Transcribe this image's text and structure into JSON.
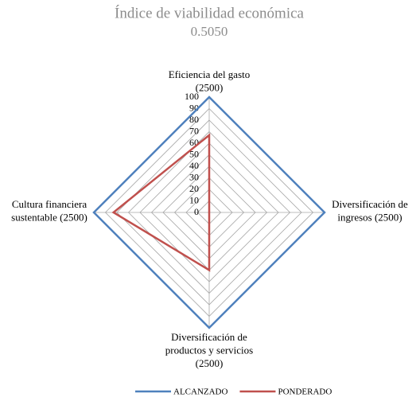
{
  "chart_data": {
    "type": "radar",
    "title": "Índice de viabilidad económica",
    "subtitle": "0.5050",
    "categories": [
      "Eficiencia del gasto\n(2500)",
      "Diversificación de\ningresos (2500)",
      "Diversificación de\nproductos y servicios\n(2500)",
      "Cultura financiera\nsustentable (2500)"
    ],
    "series": [
      {
        "name": "ALCANZADO",
        "color": "#4f81bd",
        "values": [
          100,
          100,
          100,
          100
        ]
      },
      {
        "name": "PONDERADO",
        "color": "#c0504d",
        "values": [
          67,
          0,
          50,
          83
        ]
      }
    ],
    "rlim": [
      0,
      100
    ],
    "rticks": [
      0,
      10,
      20,
      30,
      40,
      50,
      60,
      70,
      80,
      90,
      100
    ],
    "grid": true,
    "legend": "bottom"
  }
}
